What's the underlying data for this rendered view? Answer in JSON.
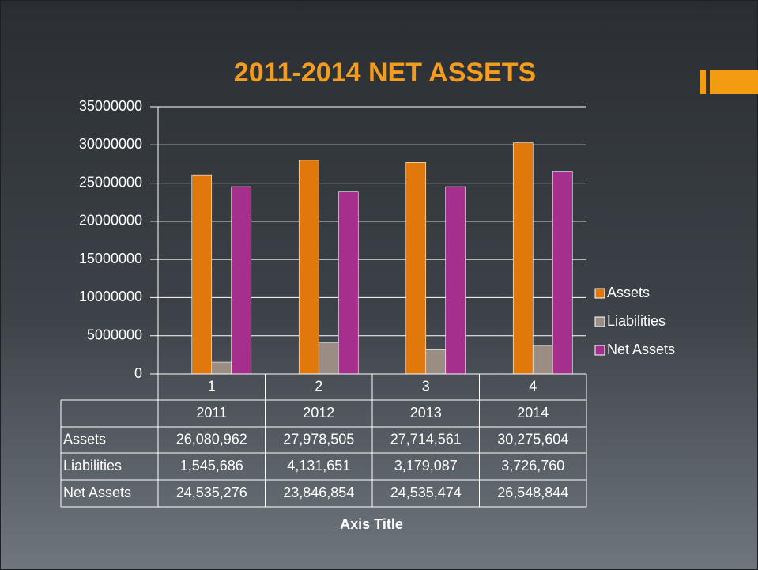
{
  "chart_data": {
    "type": "bar",
    "title": "2011-2014 NET ASSETS",
    "categories": [
      "1",
      "2",
      "3",
      "4"
    ],
    "series": [
      {
        "color": "#9fb6cf",
        "values": [
          2011,
          2012,
          2013,
          2014
        ]
      },
      {
        "name": "Assets",
        "color": "#e0780c",
        "values": [
          26080962,
          27978505,
          27714561,
          30275604
        ],
        "value_labels": [
          "26,080,962",
          "27,978,505",
          "27,714,561",
          "30,275,604"
        ]
      },
      {
        "name": "Liabilities",
        "color": "#9c8d84",
        "values": [
          1545686,
          4131651,
          3179087,
          3726760
        ],
        "value_labels": [
          "1,545,686",
          "4,131,651",
          "3,179,087",
          "3,726,760"
        ]
      },
      {
        "name": "Net Assets",
        "color": "#a62f8e",
        "values": [
          24535276,
          23846854,
          24535474,
          26548844
        ],
        "value_labels": [
          "24,535,276",
          "23,846,854",
          "24,535,474",
          "26,548,844"
        ]
      }
    ],
    "ylim": [
      0,
      35000000
    ],
    "yticks": [
      0,
      5000000,
      10000000,
      15000000,
      20000000,
      25000000,
      30000000,
      35000000
    ],
    "grid": true,
    "legend": "right",
    "x_label": "Axis Title"
  }
}
